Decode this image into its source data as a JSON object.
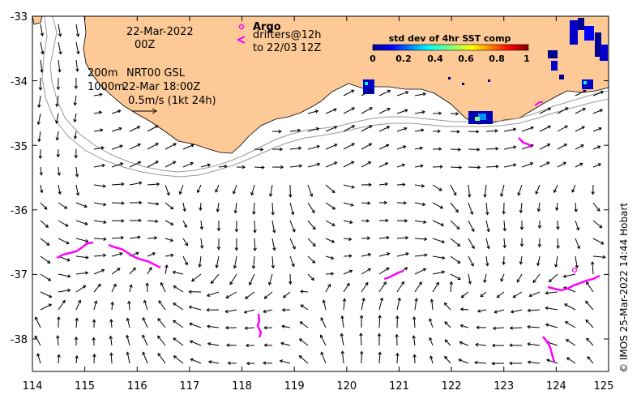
{
  "map": {
    "lon_ticks": [
      "114",
      "115",
      "116",
      "117",
      "118",
      "119",
      "120",
      "121",
      "122",
      "123",
      "124",
      "125"
    ],
    "lat_ticks": [
      "-33",
      "-34",
      "-35",
      "-36",
      "-37",
      "-38"
    ],
    "land_color": "#fdc996",
    "argo_color": "#ff00ff",
    "vector_color": "#000000"
  },
  "annotations": {
    "date": "22-Mar-2022",
    "time": "00Z",
    "depth1": "200m",
    "depth2": "1000m",
    "product": "NRT00 GSL",
    "product_time": "22-Mar 18:00Z",
    "scale": "0.5m/s (1kt 24h)",
    "argo_label": "Argo",
    "drifters_line1": "drifters@12h",
    "drifters_line2": "to 22/03 12Z"
  },
  "colorbar": {
    "title": "std dev of 4hr SST comp",
    "ticks": [
      "0",
      "0.2",
      "0.4",
      "0.6",
      "0.8",
      "1"
    ]
  },
  "credit": "© IMOS 25-Mar-2022 14:44 Hobart"
}
